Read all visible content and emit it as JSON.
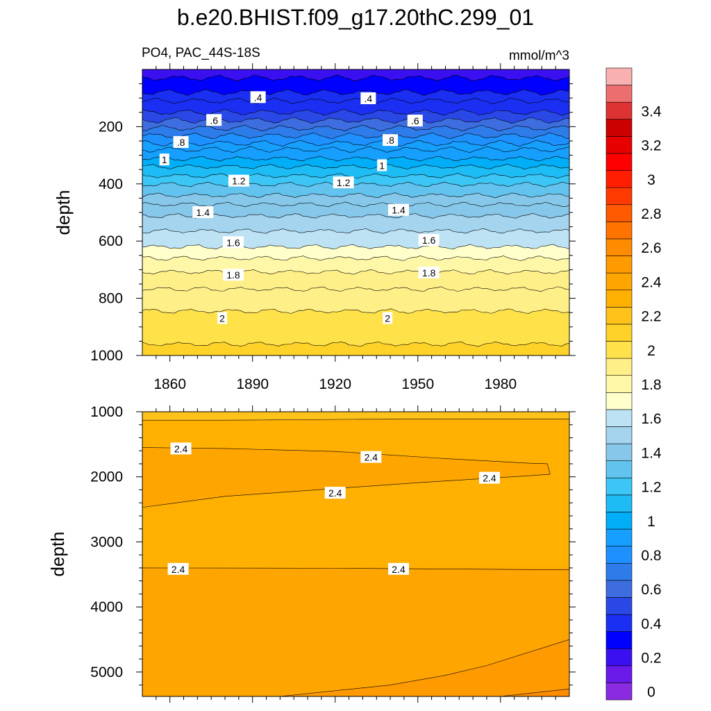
{
  "title": "b.e20.BHIST.f09_g17.20thC.299_01",
  "subtitle_left": "PO4, PAC_44S-18S",
  "subtitle_right": "mmol/m^3",
  "colorbar": {
    "levels": [
      0,
      0.1,
      0.2,
      0.3,
      0.4,
      0.5,
      0.6,
      0.7,
      0.8,
      0.9,
      1.0,
      1.1,
      1.2,
      1.3,
      1.4,
      1.5,
      1.6,
      1.7,
      1.8,
      1.9,
      2.0,
      2.1,
      2.2,
      2.3,
      2.4,
      2.5,
      2.6,
      2.7,
      2.8,
      2.9,
      3.0,
      3.1,
      3.2,
      3.3,
      3.4,
      3.5,
      3.6
    ],
    "tick_labels": [
      "0",
      "0.2",
      "0.4",
      "0.6",
      "0.8",
      "1",
      "1.2",
      "1.4",
      "1.6",
      "1.8",
      "2",
      "2.2",
      "2.4",
      "2.6",
      "2.8",
      "3",
      "3.2",
      "3.4"
    ],
    "colors": [
      "#8a2be2",
      "#6a1bea",
      "#3a10f0",
      "#0000ff",
      "#1a2ff2",
      "#2a48e6",
      "#3e6ddf",
      "#2e7cea",
      "#1e90ff",
      "#169fff",
      "#00aef8",
      "#1ebcf5",
      "#3cc6f6",
      "#62c3ef",
      "#87c8ea",
      "#a4d4ee",
      "#bde2f3",
      "#ffffcc",
      "#fff7a8",
      "#ffef88",
      "#ffe24a",
      "#ffd22a",
      "#ffc21a",
      "#ffb000",
      "#ffa500",
      "#ff9a00",
      "#ff8c00",
      "#ff7400",
      "#ff5a00",
      "#ff3a00",
      "#ff1e00",
      "#ff0000",
      "#e60000",
      "#cc0000",
      "#dd3333",
      "#ec6e6e",
      "#f8b0b0"
    ]
  },
  "chart_data": [
    {
      "type": "contour",
      "panel": "upper",
      "variable": "PO4",
      "region": "PAC_44S-18S",
      "units": "mmol/m^3",
      "ylabel": "depth",
      "x_tick_labels": [
        "1860",
        "1890",
        "1920",
        "1950",
        "1980"
      ],
      "y_tick_labels": [
        "200",
        "400",
        "600",
        "800",
        "1000"
      ],
      "xlim": [
        1850,
        2005
      ],
      "ylim": [
        1000,
        0
      ],
      "contour_levels": [
        0.2,
        0.3,
        0.4,
        0.5,
        0.6,
        0.7,
        0.8,
        0.9,
        1.0,
        1.1,
        1.2,
        1.3,
        1.4,
        1.5,
        1.6,
        1.7,
        1.8,
        1.9,
        2.0,
        2.1
      ],
      "contour_depths": [
        30,
        80,
        110,
        150,
        178,
        205,
        232,
        258,
        280,
        312,
        340,
        372,
        402,
        440,
        472,
        512,
        565,
        620,
        660,
        708,
        768,
        845,
        960
      ],
      "labels": [
        {
          "text": ".4",
          "x": 1892,
          "y": 98
        },
        {
          "text": ".4",
          "x": 1932,
          "y": 102
        },
        {
          "text": ".6",
          "x": 1876,
          "y": 178
        },
        {
          "text": ".6",
          "x": 1949,
          "y": 180
        },
        {
          "text": ".8",
          "x": 1864,
          "y": 255
        },
        {
          "text": ".8",
          "x": 1940,
          "y": 248
        },
        {
          "text": "1",
          "x": 1858,
          "y": 316
        },
        {
          "text": "1",
          "x": 1937,
          "y": 336
        },
        {
          "text": "1.2",
          "x": 1885,
          "y": 390
        },
        {
          "text": "1.2",
          "x": 1923,
          "y": 396
        },
        {
          "text": "1.4",
          "x": 1872,
          "y": 500
        },
        {
          "text": "1.4",
          "x": 1943,
          "y": 492
        },
        {
          "text": "1.6",
          "x": 1883,
          "y": 605
        },
        {
          "text": "1.6",
          "x": 1954,
          "y": 597
        },
        {
          "text": "1.8",
          "x": 1883,
          "y": 719
        },
        {
          "text": "1.8",
          "x": 1954,
          "y": 711
        },
        {
          "text": "2",
          "x": 1879,
          "y": 870
        },
        {
          "text": "2",
          "x": 1939,
          "y": 870
        }
      ]
    },
    {
      "type": "contour",
      "panel": "lower",
      "ylabel": "depth",
      "y_tick_labels": [
        "1000",
        "2000",
        "3000",
        "4000",
        "5000"
      ],
      "xlim": [
        1850,
        2005
      ],
      "ylim": [
        5375,
        1000
      ],
      "contour_levels": [
        2.3,
        2.4,
        2.5
      ],
      "labels": [
        {
          "text": "2.4",
          "x": 1864,
          "y": 1570
        },
        {
          "text": "2.4",
          "x": 1933,
          "y": 1700
        },
        {
          "text": "2.4",
          "x": 1976,
          "y": 2020
        },
        {
          "text": "2.4",
          "x": 1920,
          "y": 2250
        },
        {
          "text": "2.4",
          "x": 1863,
          "y": 3420
        },
        {
          "text": "2.4",
          "x": 1943,
          "y": 3420
        }
      ]
    }
  ]
}
